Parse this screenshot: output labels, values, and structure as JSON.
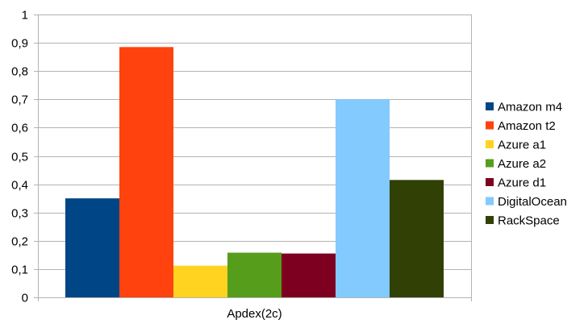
{
  "chart_data": {
    "type": "bar",
    "categories": [
      "Apdex(2c)"
    ],
    "series": [
      {
        "name": "Amazon m4",
        "values": [
          0.35
        ],
        "color": "#004586"
      },
      {
        "name": "Amazon t2",
        "values": [
          0.885
        ],
        "color": "#ff420e"
      },
      {
        "name": "Azure a1",
        "values": [
          0.112
        ],
        "color": "#ffd320"
      },
      {
        "name": "Azure a2",
        "values": [
          0.158
        ],
        "color": "#579d1c"
      },
      {
        "name": "Azure d1",
        "values": [
          0.155
        ],
        "color": "#7e0021"
      },
      {
        "name": "DigitalOcean",
        "values": [
          0.7
        ],
        "color": "#83caff"
      },
      {
        "name": "RackSpace",
        "values": [
          0.415
        ],
        "color": "#314004"
      }
    ],
    "title": "",
    "xlabel": "",
    "ylabel": "",
    "ylim": [
      0,
      1
    ],
    "yticks": [
      "0",
      "0,1",
      "0,2",
      "0,3",
      "0,4",
      "0,5",
      "0,6",
      "0,7",
      "0,8",
      "0,9",
      "1"
    ],
    "grid": true,
    "legend": "right",
    "colors": {
      "grid": "#b3b3b3",
      "axis": "#b3b3b3",
      "text": "#000000"
    }
  }
}
